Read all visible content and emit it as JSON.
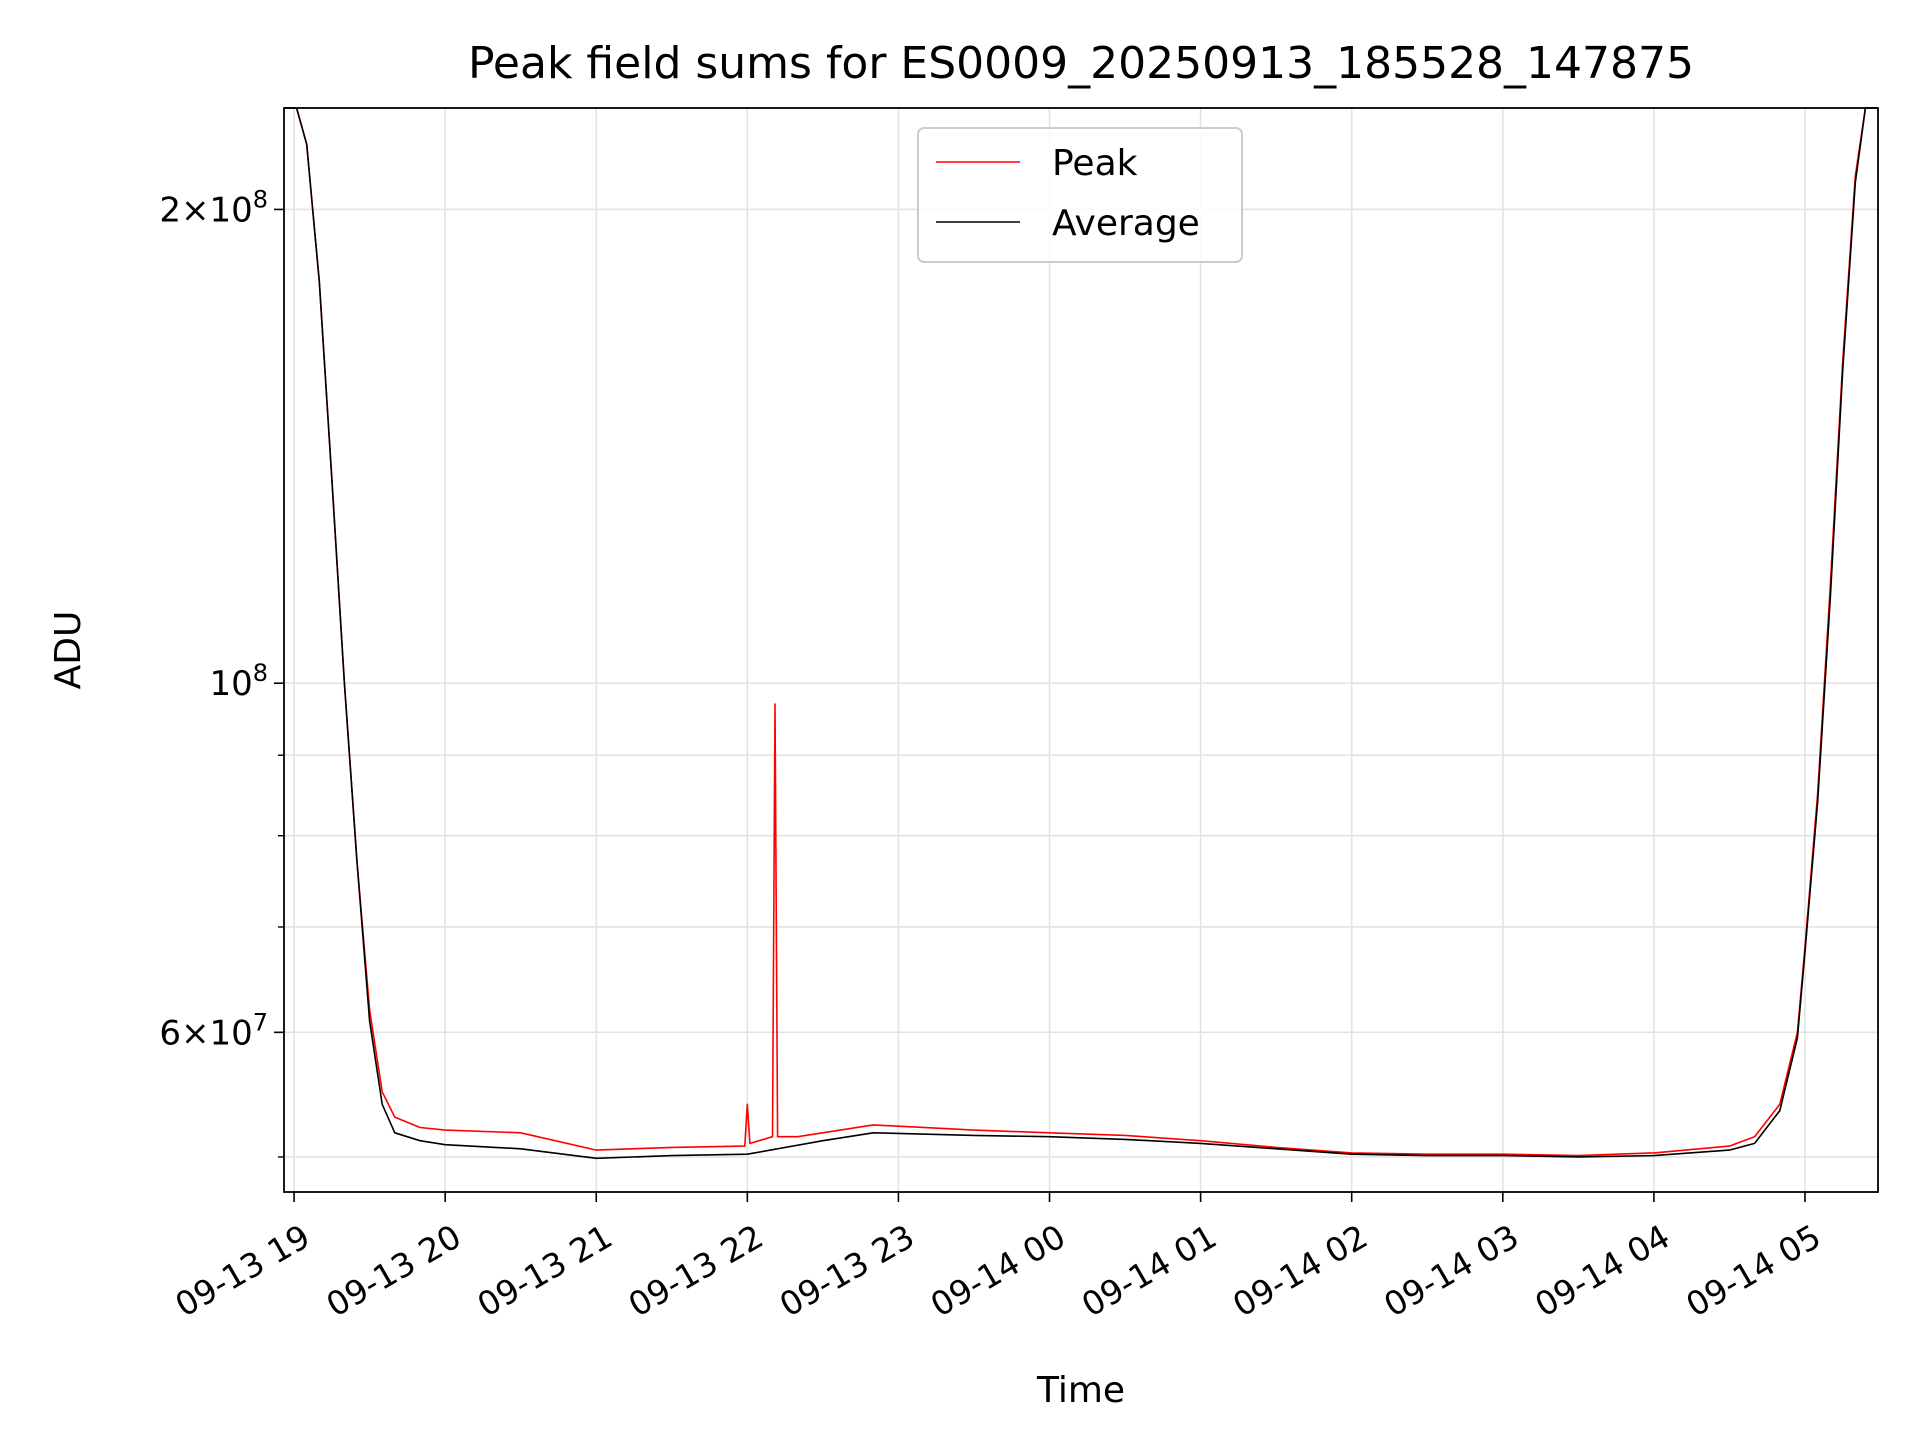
{
  "chart_data": {
    "type": "line",
    "title": "Peak field sums for ES0009_20250913_185528_147875",
    "xlabel": "Time",
    "ylabel": "ADU",
    "y_scale": "log",
    "ylim": [
      47500000,
      232000000
    ],
    "xlim": [
      "2025-09-13 18:56",
      "2025-09-14 05:29"
    ],
    "grid": true,
    "legend_position": "upper center",
    "x_ticks": [
      {
        "value": "2025-09-13 19:00",
        "label": "09-13 19"
      },
      {
        "value": "2025-09-13 20:00",
        "label": "09-13 20"
      },
      {
        "value": "2025-09-13 21:00",
        "label": "09-13 21"
      },
      {
        "value": "2025-09-13 22:00",
        "label": "09-13 22"
      },
      {
        "value": "2025-09-13 23:00",
        "label": "09-13 23"
      },
      {
        "value": "2025-09-14 00:00",
        "label": "09-14 00"
      },
      {
        "value": "2025-09-14 01:00",
        "label": "09-14 01"
      },
      {
        "value": "2025-09-14 02:00",
        "label": "09-14 02"
      },
      {
        "value": "2025-09-14 03:00",
        "label": "09-14 03"
      },
      {
        "value": "2025-09-14 04:00",
        "label": "09-14 04"
      },
      {
        "value": "2025-09-14 05:00",
        "label": "09-14 05"
      }
    ],
    "y_major_ticks": [
      {
        "value": 60000000,
        "mantissa": "6",
        "exponent": "7"
      },
      {
        "value": 100000000,
        "mantissa": "",
        "exponent": "8"
      },
      {
        "value": 200000000,
        "mantissa": "2",
        "exponent": "8"
      }
    ],
    "y_minor_ticks": [
      50000000,
      70000000,
      80000000,
      90000000
    ],
    "series": [
      {
        "name": "Peak",
        "color": "#ff0000",
        "x": [
          "2025-09-13 18:56",
          "2025-09-13 19:01",
          "2025-09-13 19:05",
          "2025-09-13 19:10",
          "2025-09-13 19:15",
          "2025-09-13 19:20",
          "2025-09-13 19:25",
          "2025-09-13 19:30",
          "2025-09-13 19:35",
          "2025-09-13 19:40",
          "2025-09-13 19:50",
          "2025-09-13 20:00",
          "2025-09-13 20:30",
          "2025-09-13 21:00",
          "2025-09-13 21:30",
          "2025-09-13 21:59",
          "2025-09-13 22:00",
          "2025-09-13 22:01",
          "2025-09-13 22:10",
          "2025-09-13 22:11",
          "2025-09-13 22:12",
          "2025-09-13 22:20",
          "2025-09-13 22:50",
          "2025-09-13 23:30",
          "2025-09-14 00:00",
          "2025-09-14 00:30",
          "2025-09-14 01:00",
          "2025-09-14 01:30",
          "2025-09-14 02:00",
          "2025-09-14 02:30",
          "2025-09-14 03:00",
          "2025-09-14 03:30",
          "2025-09-14 04:00",
          "2025-09-14 04:30",
          "2025-09-14 04:40",
          "2025-09-14 04:50",
          "2025-09-14 04:57",
          "2025-09-14 05:00",
          "2025-09-14 05:05",
          "2025-09-14 05:10",
          "2025-09-14 05:15",
          "2025-09-14 05:20",
          "2025-09-14 05:24",
          "2025-09-14 05:29"
        ],
        "y": [
          232000000,
          232000000,
          220000000,
          180000000,
          135000000,
          100000000,
          77000000,
          62000000,
          55000000,
          53000000,
          52200000,
          52000000,
          51800000,
          50500000,
          50700000,
          50800000,
          54000000,
          51000000,
          51500000,
          97000000,
          51500000,
          51500000,
          52400000,
          52000000,
          51800000,
          51600000,
          51200000,
          50700000,
          50300000,
          50200000,
          50200000,
          50100000,
          50300000,
          50800000,
          51500000,
          54000000,
          60000000,
          68000000,
          85000000,
          115000000,
          160000000,
          210000000,
          232000000,
          232000000
        ]
      },
      {
        "name": "Average",
        "color": "#000000",
        "x": [
          "2025-09-13 18:56",
          "2025-09-13 19:01",
          "2025-09-13 19:05",
          "2025-09-13 19:10",
          "2025-09-13 19:15",
          "2025-09-13 19:20",
          "2025-09-13 19:25",
          "2025-09-13 19:30",
          "2025-09-13 19:35",
          "2025-09-13 19:40",
          "2025-09-13 19:50",
          "2025-09-13 20:00",
          "2025-09-13 20:30",
          "2025-09-13 21:00",
          "2025-09-13 21:30",
          "2025-09-13 22:00",
          "2025-09-13 22:30",
          "2025-09-13 22:50",
          "2025-09-13 23:30",
          "2025-09-14 00:00",
          "2025-09-14 00:30",
          "2025-09-14 01:00",
          "2025-09-14 01:30",
          "2025-09-14 02:00",
          "2025-09-14 02:30",
          "2025-09-14 03:00",
          "2025-09-14 03:30",
          "2025-09-14 04:00",
          "2025-09-14 04:30",
          "2025-09-14 04:40",
          "2025-09-14 04:50",
          "2025-09-14 04:57",
          "2025-09-14 05:00",
          "2025-09-14 05:05",
          "2025-09-14 05:10",
          "2025-09-14 05:15",
          "2025-09-14 05:20",
          "2025-09-14 05:24",
          "2025-09-14 05:29"
        ],
        "y": [
          232000000,
          232000000,
          220000000,
          180000000,
          135000000,
          100000000,
          77000000,
          61000000,
          54000000,
          51800000,
          51200000,
          50900000,
          50600000,
          49900000,
          50100000,
          50200000,
          51200000,
          51800000,
          51600000,
          51500000,
          51300000,
          51000000,
          50600000,
          50200000,
          50100000,
          50100000,
          50000000,
          50100000,
          50500000,
          51000000,
          53500000,
          59500000,
          67500000,
          84000000,
          113000000,
          158000000,
          208000000,
          232000000,
          232000000
        ]
      }
    ]
  }
}
